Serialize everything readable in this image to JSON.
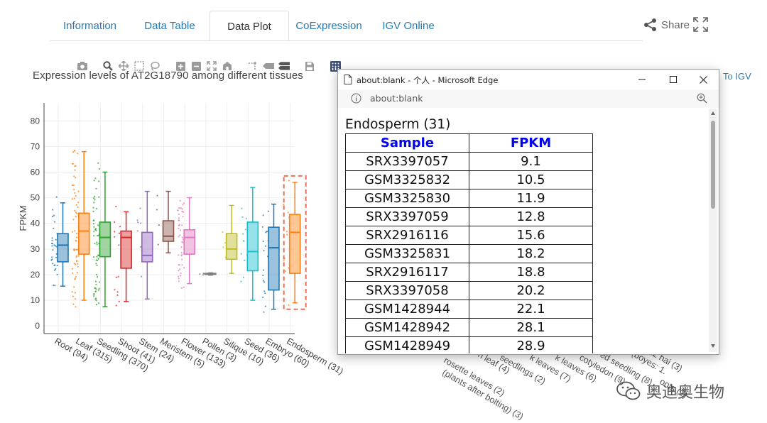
{
  "tabs": [
    {
      "label": "Information",
      "active": false
    },
    {
      "label": "Data Table",
      "active": false
    },
    {
      "label": "Data Plot",
      "active": true
    },
    {
      "label": "CoExpression",
      "active": false
    },
    {
      "label": "IGV Online",
      "active": false
    }
  ],
  "share_label": "Share",
  "to_igv_label": "To IGV",
  "modebar_icons": [
    "camera-icon",
    "zoom-icon",
    "pan-icon",
    "box-select-icon",
    "lasso-icon",
    "zoom-in-icon",
    "zoom-out-icon",
    "autoscale-icon",
    "reset-axes-icon",
    "spike-lines-icon",
    "hover-closest-icon",
    "hover-compare-icon",
    "save-icon",
    "plotly-logo-icon"
  ],
  "plot": {
    "title": "Expression levels of AT2G18790 among different tissues",
    "ylabel": "FPKM",
    "yticks": [
      "0",
      "10",
      "20",
      "30",
      "40",
      "50",
      "60",
      "70",
      "80"
    ]
  },
  "chart_data": {
    "type": "box",
    "title": "Expression levels of AT2G18790 among different tissues",
    "ylabel": "FPKM",
    "ylim": [
      -3,
      87
    ],
    "grid": true,
    "highlighted_category": "Endosperm (31)",
    "categories": [
      "Root (94)",
      "Leaf (315)",
      "Seedling (370)",
      "Shoot (41)",
      "Stem (24)",
      "Meristem (5)",
      "Flower (133)",
      "Pollen (3)",
      "Silique (10)",
      "Seed (36)",
      "Embryo (60)",
      "Endosperm (31)"
    ],
    "series": [
      {
        "category": "Root (94)",
        "color": "#1f77b4",
        "min": 15.5,
        "q1": 25,
        "median": 31.5,
        "q3": 36,
        "max": 48
      },
      {
        "category": "Leaf (315)",
        "color": "#ff7f0e",
        "min": 10,
        "q1": 28,
        "median": 37,
        "q3": 44,
        "max": 68
      },
      {
        "category": "Seedling (370)",
        "color": "#2ca02c",
        "min": 7.5,
        "q1": 27,
        "median": 34.5,
        "q3": 40.5,
        "max": 60
      },
      {
        "category": "Shoot (41)",
        "color": "#d62728",
        "min": 9.5,
        "q1": 22.5,
        "median": 34.5,
        "q3": 37,
        "max": 44.5
      },
      {
        "category": "Stem (24)",
        "color": "#9467bd",
        "min": 10.5,
        "q1": 25,
        "median": 27.5,
        "q3": 36.5,
        "max": 52.5
      },
      {
        "category": "Meristem (5)",
        "color": "#8c564b",
        "min": 28.5,
        "q1": 33,
        "median": 35,
        "q3": 41,
        "max": 52.5
      },
      {
        "category": "Flower (133)",
        "color": "#e377c2",
        "min": 16.5,
        "q1": 28,
        "median": 34.5,
        "q3": 37.5,
        "max": 50
      },
      {
        "category": "Pollen (3)",
        "color": "#7f7f7f",
        "min": 19.8,
        "q1": 20.1,
        "median": 20.3,
        "q3": 20.5,
        "max": 20.7
      },
      {
        "category": "Silique (10)",
        "color": "#bcbd22",
        "min": 20.5,
        "q1": 26,
        "median": 30,
        "q3": 36,
        "max": 47
      },
      {
        "category": "Seed (36)",
        "color": "#17becf",
        "min": 10,
        "q1": 21.5,
        "median": 29,
        "q3": 40.5,
        "max": 54
      },
      {
        "category": "Embryo (60)",
        "color": "#1f77b4",
        "min": 6.5,
        "q1": 14,
        "median": 30.5,
        "q3": 38.5,
        "max": 47.5
      },
      {
        "category": "Endosperm (31)",
        "color": "#ff7f0e",
        "min": 9,
        "q1": 20.5,
        "median": 36.5,
        "q3": 43.5,
        "max": 56
      }
    ]
  },
  "background_ticks": [
    "rosette leaves (2)",
    "(plants after bolting) (3)",
    "n leaf (4)",
    "seedlings (2)",
    "k leaves (7)",
    "k leaves (6)",
    "cotyledon (9)",
    "ed seedling (8)",
    "gs (boyes: 1.",
    "t 12 hai (3)",
    "oots (2)"
  ],
  "popup": {
    "window_title": "about:blank - 个人 - Microsoft Edge",
    "address": "about:blank",
    "heading": "Endosperm (31)",
    "columns": [
      "Sample",
      "FPKM"
    ],
    "rows": [
      [
        "SRX3397057",
        "9.1"
      ],
      [
        "GSM3325832",
        "10.5"
      ],
      [
        "GSM3325830",
        "11.9"
      ],
      [
        "SRX3397059",
        "12.8"
      ],
      [
        "SRX2916116",
        "15.6"
      ],
      [
        "GSM3325831",
        "18.2"
      ],
      [
        "SRX2916117",
        "18.8"
      ],
      [
        "SRX3397058",
        "20.2"
      ],
      [
        "GSM1428944",
        "22.1"
      ],
      [
        "GSM1428942",
        "28.1"
      ],
      [
        "GSM1428949",
        "28.9"
      ]
    ]
  },
  "watermark_text": "奥迪奥生物"
}
